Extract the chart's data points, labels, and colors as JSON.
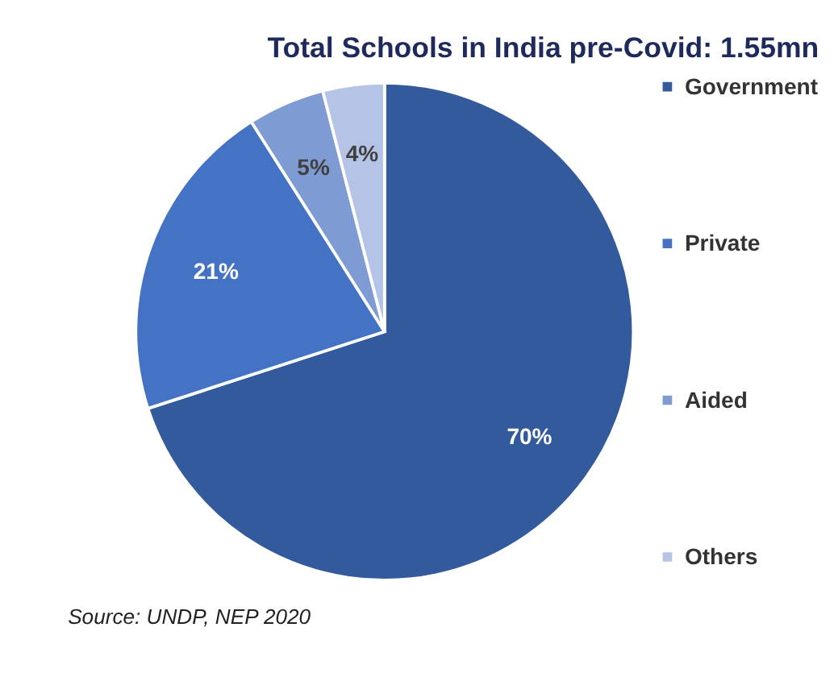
{
  "chart_data": {
    "type": "pie",
    "title": "Total Schools in India pre-Covid: 1.55mn",
    "categories": [
      "Government",
      "Private",
      "Aided",
      "Others"
    ],
    "values": [
      70,
      21,
      5,
      4
    ],
    "colors": [
      "#335a9c",
      "#4472c4",
      "#7f9bd4",
      "#b4c3e6"
    ],
    "value_labels": [
      "70%",
      "21%",
      "5%",
      "4%"
    ],
    "legend": "right",
    "annotations": [
      "Source: UNDP, NEP 2020"
    ]
  }
}
